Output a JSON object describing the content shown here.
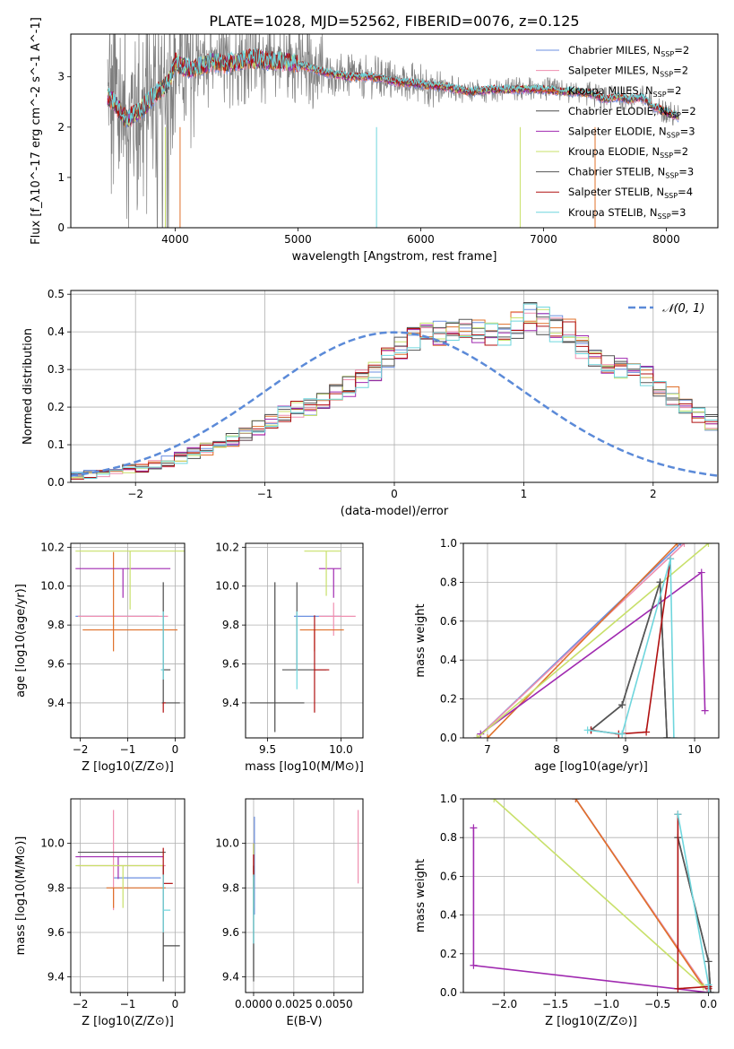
{
  "figure": {
    "title": "PLATE=1028, MJD=52562, FIBERID=0076, z=0.125"
  },
  "models": [
    {
      "name": "Chabrier MILES",
      "nssp": "2",
      "color": "#6b8fe0"
    },
    {
      "name": "Salpeter MILES",
      "nssp": "2",
      "color": "#ef8fb0"
    },
    {
      "name": "Kroupa MILES",
      "nssp": "2",
      "color": "#e0702a"
    },
    {
      "name": "Chabrier ELODIE",
      "nssp": "2",
      "color": "#4a4a4a"
    },
    {
      "name": "Salpeter ELODIE",
      "nssp": "3",
      "color": "#a02ab0"
    },
    {
      "name": "Kroupa ELODIE",
      "nssp": "2",
      "color": "#c8e06a"
    },
    {
      "name": "Chabrier STELIB",
      "nssp": "3",
      "color": "#555555"
    },
    {
      "name": "Salpeter STELIB",
      "nssp": "4",
      "color": "#b01010"
    },
    {
      "name": "Kroupa STELIB",
      "nssp": "3",
      "color": "#6fd6dd"
    }
  ],
  "chart_data": [
    {
      "id": "spectrum",
      "type": "line",
      "xlabel": "wavelength [Angstrom, rest frame]",
      "ylabel": "Flux [f_λ10^-17 erg cm^-2 s^-1 A^-1]",
      "xlim": [
        3150,
        8420
      ],
      "ylim": [
        0,
        3.85
      ],
      "xticks": [
        4000,
        5000,
        6000,
        7000,
        8000
      ],
      "yticks": [
        0,
        1,
        2,
        3
      ],
      "grid": false,
      "legend": "upper right",
      "continuum_x": [
        3450,
        3500,
        3600,
        3700,
        3800,
        3900,
        3950,
        4000,
        4100,
        4200,
        4300,
        4400,
        4500,
        4600,
        4700,
        4800,
        4900,
        5000,
        5200,
        5400,
        5600,
        5800,
        6000,
        6200,
        6400,
        6600,
        6800,
        7000,
        7200,
        7300,
        7400,
        7500,
        7600,
        7700,
        7800,
        7900,
        8000,
        8100
      ],
      "continuum_y": [
        2.6,
        2.5,
        2.15,
        2.3,
        2.55,
        2.8,
        2.9,
        3.3,
        3.15,
        3.2,
        3.3,
        3.25,
        3.3,
        3.35,
        3.35,
        3.3,
        3.3,
        3.25,
        3.1,
        3.0,
        3.0,
        2.9,
        2.85,
        2.8,
        2.7,
        2.75,
        2.75,
        2.75,
        2.7,
        2.7,
        2.65,
        2.55,
        2.6,
        2.55,
        2.6,
        2.4,
        2.3,
        2.2
      ]
    },
    {
      "id": "residuals",
      "type": "line",
      "xlabel": "(data-model)/error",
      "ylabel": "Normed distribution",
      "xlim": [
        -2.5,
        2.5
      ],
      "ylim": [
        0,
        0.51
      ],
      "xticks": [
        -2,
        -1,
        0,
        1,
        2
      ],
      "yticks": [
        0.0,
        0.1,
        0.2,
        0.3,
        0.4,
        0.5
      ],
      "grid": true,
      "legend": "upper right",
      "reference_label": "𝒩(0, 1)",
      "bin_width": 0.1,
      "hist_start": -2.5,
      "hist_values": [
        0.02,
        0.02,
        0.025,
        0.03,
        0.035,
        0.04,
        0.045,
        0.055,
        0.065,
        0.08,
        0.09,
        0.1,
        0.115,
        0.13,
        0.145,
        0.16,
        0.18,
        0.195,
        0.2,
        0.22,
        0.235,
        0.255,
        0.275,
        0.3,
        0.33,
        0.355,
        0.38,
        0.4,
        0.4,
        0.405,
        0.41,
        0.405,
        0.39,
        0.4,
        0.42,
        0.44,
        0.43,
        0.41,
        0.4,
        0.36,
        0.34,
        0.31,
        0.3,
        0.295,
        0.28,
        0.25,
        0.23,
        0.2,
        0.18,
        0.16,
        0.145,
        0.125,
        0.115,
        0.1,
        0.09,
        0.08,
        0.07,
        0.065,
        0.055,
        0.045,
        0.04,
        0.035,
        0.03,
        0.025,
        0.022
      ]
    },
    {
      "id": "age-vs-Z",
      "type": "scatter",
      "xlabel": "Z [log10(Z/Z⊙)]",
      "ylabel": "age [log10(age/yr)]",
      "xlim": [
        -2.2,
        0.2
      ],
      "ylim": [
        9.22,
        10.22
      ],
      "xticks": [
        -2,
        -1,
        0
      ],
      "yticks": [
        9.4,
        9.6,
        9.8,
        10.0,
        10.2
      ],
      "grid": true,
      "points": [
        {
          "model": "Chabrier MILES",
          "x": -0.85,
          "y": 9.845,
          "xerr": [
            1.25,
            0.5
          ],
          "yerr": [
            0.0,
            0.0
          ]
        },
        {
          "model": "Salpeter MILES",
          "x": -0.8,
          "y": 9.845,
          "xerr": [
            1.25,
            0.65
          ],
          "yerr": [
            0.0,
            0.0
          ]
        },
        {
          "model": "Kroupa MILES",
          "x": -1.3,
          "y": 9.775,
          "xerr": [
            0.65,
            1.35
          ],
          "yerr": [
            0.11,
            0.4
          ]
        },
        {
          "model": "Chabrier ELODIE",
          "x": -0.25,
          "y": 9.4,
          "xerr": [
            0.03,
            0.35
          ],
          "yerr": [
            0.0,
            0.62
          ]
        },
        {
          "model": "Salpeter ELODIE",
          "x": -1.1,
          "y": 10.09,
          "xerr": [
            1.0,
            1.0
          ],
          "yerr": [
            0.15,
            0.0
          ]
        },
        {
          "model": "Kroupa ELODIE",
          "x": -0.95,
          "y": 10.18,
          "xerr": [
            1.15,
            1.2
          ],
          "yerr": [
            0.3,
            0.0
          ]
        },
        {
          "model": "Chabrier STELIB",
          "x": -0.2,
          "y": 9.57,
          "xerr": [
            0.05,
            0.1
          ],
          "yerr": [
            0.0,
            0.0
          ]
        },
        {
          "model": "Salpeter STELIB",
          "x": -0.25,
          "y": 9.4,
          "xerr": [
            0.0,
            0.05
          ],
          "yerr": [
            0.05,
            0.0
          ]
        },
        {
          "model": "Kroupa STELIB",
          "x": -0.25,
          "y": 9.57,
          "xerr": [
            0.05,
            0.0
          ],
          "yerr": [
            0.05,
            0.3
          ]
        }
      ]
    },
    {
      "id": "age-vs-mass",
      "type": "scatter",
      "xlabel": "mass [log10(M/M⊙)]",
      "ylabel": "",
      "xlim": [
        9.35,
        10.15
      ],
      "ylim": [
        9.22,
        10.22
      ],
      "xticks": [
        9.5,
        10.0
      ],
      "yticks": [
        9.4,
        9.6,
        9.8,
        10.0,
        10.2
      ],
      "grid": true,
      "points": [
        {
          "model": "Chabrier MILES",
          "x": 9.85,
          "y": 9.845,
          "xerr": [
            0.17,
            0.15
          ],
          "yerr": [
            0.0,
            0.0
          ]
        },
        {
          "model": "Salpeter MILES",
          "x": 9.95,
          "y": 9.845,
          "xerr": [
            0.1,
            0.15
          ],
          "yerr": [
            0.1,
            0.07
          ]
        },
        {
          "model": "Kroupa MILES",
          "x": 9.82,
          "y": 9.775,
          "xerr": [
            0.1,
            0.2
          ],
          "yerr": [
            0.11,
            0.0
          ]
        },
        {
          "model": "Chabrier ELODIE",
          "x": 9.55,
          "y": 9.4,
          "xerr": [
            0.17,
            0.2
          ],
          "yerr": [
            0.15,
            0.62
          ]
        },
        {
          "model": "Salpeter ELODIE",
          "x": 9.95,
          "y": 10.09,
          "xerr": [
            0.1,
            0.05
          ],
          "yerr": [
            0.15,
            0.0
          ]
        },
        {
          "model": "Kroupa ELODIE",
          "x": 9.9,
          "y": 10.18,
          "xerr": [
            0.15,
            0.1
          ],
          "yerr": [
            0.23,
            0.0
          ]
        },
        {
          "model": "Chabrier STELIB",
          "x": 9.7,
          "y": 9.57,
          "xerr": [
            0.1,
            0.2
          ],
          "yerr": [
            0.0,
            0.45
          ]
        },
        {
          "model": "Salpeter STELIB",
          "x": 9.82,
          "y": 9.57,
          "xerr": [
            0.0,
            0.1
          ],
          "yerr": [
            0.22,
            0.28
          ]
        },
        {
          "model": "Kroupa STELIB",
          "x": 9.7,
          "y": 9.57,
          "xerr": [
            0.0,
            0.0
          ],
          "yerr": [
            0.1,
            0.3
          ]
        }
      ]
    },
    {
      "id": "weight-vs-age",
      "type": "line",
      "xlabel": "age [log10(age/yr)]",
      "ylabel": "mass weight",
      "xlim": [
        6.65,
        10.35
      ],
      "ylim": [
        0,
        1.0
      ],
      "xticks": [
        7,
        8,
        9,
        10
      ],
      "yticks": [
        0.0,
        0.2,
        0.4,
        0.6,
        0.8,
        1.0
      ],
      "grid": true,
      "series": [
        {
          "model": "Chabrier MILES",
          "x": [
            6.85,
            9.8
          ],
          "y": [
            0.0,
            1.0
          ]
        },
        {
          "model": "Salpeter MILES",
          "x": [
            6.85,
            9.85
          ],
          "y": [
            0.0,
            1.0
          ]
        },
        {
          "model": "Kroupa MILES",
          "x": [
            7.0,
            9.75
          ],
          "y": [
            0.0,
            1.0
          ]
        },
        {
          "model": "Chabrier ELODIE",
          "x": [
            8.5,
            8.95,
            9.5,
            9.6
          ],
          "y": [
            0.04,
            0.17,
            0.8,
            0.0
          ]
        },
        {
          "model": "Salpeter ELODIE",
          "x": [
            6.9,
            10.1,
            10.15
          ],
          "y": [
            0.02,
            0.85,
            0.14
          ]
        },
        {
          "model": "Kroupa ELODIE",
          "x": [
            6.85,
            10.2
          ],
          "y": [
            0.0,
            1.0
          ]
        },
        {
          "model": "Chabrier STELIB",
          "x": [
            8.5,
            8.95,
            9.5,
            9.6
          ],
          "y": [
            0.04,
            0.17,
            0.8,
            0.0
          ]
        },
        {
          "model": "Salpeter STELIB",
          "x": [
            8.5,
            8.9,
            9.3,
            9.65
          ],
          "y": [
            0.04,
            0.02,
            0.03,
            0.92
          ]
        },
        {
          "model": "Kroupa STELIB",
          "x": [
            8.45,
            8.95,
            9.65,
            9.7
          ],
          "y": [
            0.04,
            0.02,
            0.92,
            0.0
          ]
        }
      ]
    },
    {
      "id": "mass-vs-Z",
      "type": "scatter",
      "xlabel": "Z [log10(Z/Z⊙)]",
      "ylabel": "mass [log10(M/M⊙)]",
      "xlim": [
        -2.2,
        0.2
      ],
      "ylim": [
        9.33,
        10.2
      ],
      "xticks": [
        -2,
        -1,
        0
      ],
      "yticks": [
        9.4,
        9.6,
        9.8,
        10.0
      ],
      "grid": true,
      "points": [
        {
          "model": "Chabrier MILES",
          "x": -0.85,
          "y": 9.845,
          "xerr": [
            0.45,
            0.55
          ],
          "yerr": [
            0.0,
            0.0
          ]
        },
        {
          "model": "Salpeter MILES",
          "x": -1.3,
          "y": 9.9,
          "xerr": [
            0.75,
            1.1
          ],
          "yerr": [
            0.2,
            0.25
          ]
        },
        {
          "model": "Kroupa MILES",
          "x": -1.3,
          "y": 9.8,
          "xerr": [
            0.15,
            1.1
          ],
          "yerr": [
            0.09,
            0.0
          ]
        },
        {
          "model": "Chabrier ELODIE",
          "x": -0.25,
          "y": 9.54,
          "xerr": [
            0.0,
            0.35
          ],
          "yerr": [
            0.16,
            0.36
          ]
        },
        {
          "model": "Salpeter ELODIE",
          "x": -1.2,
          "y": 9.94,
          "xerr": [
            0.9,
            0.95
          ],
          "yerr": [
            0.1,
            0.0
          ]
        },
        {
          "model": "Kroupa ELODIE",
          "x": -1.1,
          "y": 9.9,
          "xerr": [
            1.0,
            0.85
          ],
          "yerr": [
            0.19,
            0.0
          ]
        },
        {
          "model": "Chabrier STELIB",
          "x": -1.05,
          "y": 9.96,
          "xerr": [
            1.0,
            0.85
          ],
          "yerr": [
            0.0,
            0.0
          ]
        },
        {
          "model": "Salpeter STELIB",
          "x": -0.25,
          "y": 9.82,
          "xerr": [
            0.0,
            0.2
          ],
          "yerr": [
            0.0,
            0.16
          ]
        },
        {
          "model": "Kroupa STELIB",
          "x": -0.25,
          "y": 9.7,
          "xerr": [
            0.0,
            0.15
          ],
          "yerr": [
            0.1,
            0.16
          ]
        }
      ]
    },
    {
      "id": "mass-vs-EBV",
      "type": "scatter",
      "xlabel": "E(B-V)",
      "ylabel": "",
      "xlim": [
        -0.0005,
        0.0068
      ],
      "ylim": [
        9.33,
        10.2
      ],
      "xticks": [
        0.0,
        0.0025,
        0.005
      ],
      "xtick_labels": [
        "0.0000",
        "0.0025",
        "0.0050"
      ],
      "yticks": [
        9.4,
        9.6,
        9.8,
        10.0
      ],
      "grid": true,
      "points": [
        {
          "model": "Chabrier MILES",
          "x": 5e-05,
          "y": 9.9,
          "xerr": [
            0,
            0
          ],
          "yerr": [
            0.22,
            0.22
          ]
        },
        {
          "model": "Salpeter MILES",
          "x": 0.0065,
          "y": 9.99,
          "xerr": [
            0,
            0
          ],
          "yerr": [
            0.17,
            0.16
          ]
        },
        {
          "model": "Kroupa MILES",
          "x": 0.0,
          "y": 9.9,
          "xerr": [
            0,
            0
          ],
          "yerr": [
            0.1,
            0.1
          ]
        },
        {
          "model": "Chabrier ELODIE",
          "x": 0.0,
          "y": 9.55,
          "xerr": [
            0,
            0
          ],
          "yerr": [
            0.17,
            0.35
          ]
        },
        {
          "model": "Salpeter ELODIE",
          "x": 0.0,
          "y": 9.94,
          "xerr": [
            0,
            0
          ],
          "yerr": [
            0.07,
            0.06
          ]
        },
        {
          "model": "Kroupa ELODIE",
          "x": 0.0,
          "y": 9.9,
          "xerr": [
            0,
            0
          ],
          "yerr": [
            0.19,
            0.1
          ]
        },
        {
          "model": "Chabrier STELIB",
          "x": 0.0,
          "y": 9.6,
          "xerr": [
            0,
            0
          ],
          "yerr": [
            0.2,
            0.3
          ]
        },
        {
          "model": "Salpeter STELIB",
          "x": 0.0,
          "y": 9.9,
          "xerr": [
            0,
            0
          ],
          "yerr": [
            0.05,
            0.05
          ]
        },
        {
          "model": "Kroupa STELIB",
          "x": 0.0,
          "y": 9.7,
          "xerr": [
            0,
            0
          ],
          "yerr": [
            0.15,
            0.16
          ]
        }
      ]
    },
    {
      "id": "weight-vs-Z",
      "type": "line",
      "xlabel": "Z [log10(Z/Z⊙)]",
      "ylabel": "mass weight",
      "xlim": [
        -2.4,
        0.1
      ],
      "ylim": [
        0,
        1.0
      ],
      "xticks": [
        -2.0,
        -1.5,
        -1.0,
        -0.5,
        0.0
      ],
      "yticks": [
        0.0,
        0.2,
        0.4,
        0.6,
        0.8,
        1.0
      ],
      "grid": true,
      "series": [
        {
          "model": "Chabrier MILES",
          "x": [
            -1.3,
            0.0
          ],
          "y": [
            1.0,
            0.0
          ]
        },
        {
          "model": "Salpeter MILES",
          "x": [
            -1.3,
            0.0
          ],
          "y": [
            1.0,
            0.0
          ]
        },
        {
          "model": "Kroupa MILES",
          "x": [
            -1.3,
            -0.05
          ],
          "y": [
            1.0,
            0.03
          ]
        },
        {
          "model": "Chabrier ELODIE",
          "x": [
            -0.3,
            0.0,
            0.02
          ],
          "y": [
            0.8,
            0.16,
            0.0
          ]
        },
        {
          "model": "Salpeter ELODIE",
          "x": [
            -2.3,
            -2.3,
            0.0
          ],
          "y": [
            0.85,
            0.14,
            0.0
          ]
        },
        {
          "model": "Kroupa ELODIE",
          "x": [
            -2.1,
            -0.05
          ],
          "y": [
            1.0,
            0.03
          ]
        },
        {
          "model": "Chabrier STELIB",
          "x": [
            -0.3,
            0.0,
            0.02
          ],
          "y": [
            0.8,
            0.16,
            0.0
          ]
        },
        {
          "model": "Salpeter STELIB",
          "x": [
            -0.3,
            -0.3,
            0.0,
            0.0
          ],
          "y": [
            0.92,
            0.02,
            0.03,
            0.02
          ]
        },
        {
          "model": "Kroupa STELIB",
          "x": [
            -0.3,
            0.0,
            0.0
          ],
          "y": [
            0.92,
            0.04,
            0.0
          ]
        }
      ]
    }
  ]
}
